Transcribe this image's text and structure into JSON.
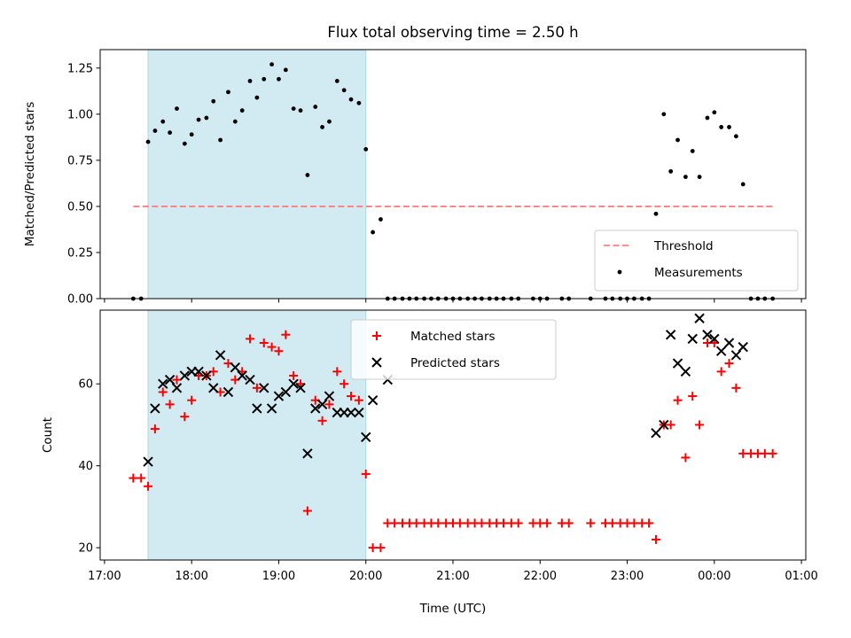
{
  "figure": {
    "title": "Flux total observing time = 2.50 h",
    "xlabel": "Time (UTC)",
    "x_ticks": [
      "17:00",
      "18:00",
      "19:00",
      "20:00",
      "21:00",
      "22:00",
      "23:00",
      "00:00",
      "01:00"
    ]
  },
  "colors": {
    "threshold": "#ff7f7f",
    "shade": "#add8e6",
    "matched": "#ff0000",
    "predicted": "#000000",
    "measurements": "#000000"
  },
  "chart_data": [
    {
      "type": "scatter",
      "panel": "top",
      "title": "Flux total observing time = 2.50 h",
      "ylabel": "Matched/Predicted stars",
      "xlim_hours": [
        16.95,
        25.05
      ],
      "ylim": [
        0.0,
        1.35
      ],
      "y_ticks": [
        "0.00",
        "0.25",
        "0.50",
        "0.75",
        "1.00",
        "1.25"
      ],
      "shaded_span_hours": [
        17.5,
        20.0
      ],
      "legend": {
        "position": "lower right",
        "entries": [
          "Threshold",
          "Measurements"
        ]
      },
      "threshold": {
        "name": "Threshold",
        "value": 0.5,
        "x_range_hours": [
          17.33,
          24.67
        ]
      },
      "series": [
        {
          "name": "Measurements",
          "x_hours": [
            17.33,
            17.42,
            17.5,
            17.58,
            17.67,
            17.75,
            17.83,
            17.92,
            18.0,
            18.08,
            18.17,
            18.25,
            18.33,
            18.42,
            18.5,
            18.58,
            18.67,
            18.75,
            18.83,
            18.92,
            19.0,
            19.08,
            19.17,
            19.25,
            19.33,
            19.42,
            19.5,
            19.58,
            19.67,
            19.75,
            19.83,
            19.92,
            20.0,
            20.08,
            20.17,
            20.25,
            20.33,
            20.42,
            20.5,
            20.58,
            20.67,
            20.75,
            20.83,
            20.92,
            21.0,
            21.08,
            21.17,
            21.25,
            21.33,
            21.42,
            21.5,
            21.58,
            21.67,
            21.75,
            21.92,
            22.0,
            22.08,
            22.25,
            22.33,
            22.58,
            22.75,
            22.83,
            22.92,
            23.0,
            23.08,
            23.17,
            23.25,
            23.33,
            23.42,
            23.5,
            23.58,
            23.67,
            23.75,
            23.83,
            23.92,
            24.0,
            24.08,
            24.17,
            24.25,
            24.33,
            24.42,
            24.5,
            24.58,
            24.67
          ],
          "y": [
            0.0,
            0.0,
            0.85,
            0.91,
            0.96,
            0.9,
            1.03,
            0.84,
            0.89,
            0.97,
            0.98,
            1.07,
            0.86,
            1.12,
            0.96,
            1.02,
            1.18,
            1.09,
            1.19,
            1.27,
            1.19,
            1.24,
            1.03,
            1.02,
            0.67,
            1.04,
            0.93,
            0.96,
            1.18,
            1.13,
            1.08,
            1.06,
            0.81,
            0.36,
            0.43,
            0.0,
            0.0,
            0.0,
            0.0,
            0.0,
            0.0,
            0.0,
            0.0,
            0.0,
            0.0,
            0.0,
            0.0,
            0.0,
            0.0,
            0.0,
            0.0,
            0.0,
            0.0,
            0.0,
            0.0,
            0.0,
            0.0,
            0.0,
            0.0,
            0.0,
            0.0,
            0.0,
            0.0,
            0.0,
            0.0,
            0.0,
            0.0,
            0.46,
            1.0,
            0.69,
            0.86,
            0.66,
            0.8,
            0.66,
            0.98,
            1.01,
            0.93,
            0.93,
            0.88,
            0.62,
            0.0,
            0.0,
            0.0,
            0.0
          ]
        }
      ]
    },
    {
      "type": "scatter",
      "panel": "bottom",
      "xlabel": "Time (UTC)",
      "ylabel": "Count",
      "xlim_hours": [
        16.95,
        25.05
      ],
      "ylim": [
        17,
        78
      ],
      "y_ticks": [
        "20",
        "40",
        "60"
      ],
      "shaded_span_hours": [
        17.5,
        20.0
      ],
      "legend": {
        "position": "upper center",
        "entries": [
          "Matched stars",
          "Predicted stars"
        ]
      },
      "series": [
        {
          "name": "Matched stars",
          "marker": "+",
          "x_hours": [
            17.33,
            17.42,
            17.5,
            17.58,
            17.67,
            17.75,
            17.83,
            17.92,
            18.0,
            18.08,
            18.17,
            18.25,
            18.33,
            18.42,
            18.5,
            18.58,
            18.67,
            18.75,
            18.83,
            18.92,
            19.0,
            19.08,
            19.17,
            19.25,
            19.33,
            19.42,
            19.5,
            19.58,
            19.67,
            19.75,
            19.83,
            19.92,
            20.0,
            20.08,
            20.17,
            20.25,
            20.33,
            20.42,
            20.5,
            20.58,
            20.67,
            20.75,
            20.83,
            20.92,
            21.0,
            21.08,
            21.17,
            21.25,
            21.33,
            21.42,
            21.5,
            21.58,
            21.67,
            21.75,
            21.92,
            22.0,
            22.08,
            22.25,
            22.33,
            22.58,
            22.75,
            22.83,
            22.92,
            23.0,
            23.08,
            23.17,
            23.25,
            23.33,
            23.42,
            23.5,
            23.58,
            23.67,
            23.75,
            23.83,
            23.92,
            24.0,
            24.08,
            24.17,
            24.25,
            24.33,
            24.42,
            24.5,
            24.58,
            24.67
          ],
          "y": [
            37,
            37,
            35,
            49,
            58,
            55,
            61,
            52,
            56,
            62,
            62,
            63,
            58,
            65,
            61,
            63,
            71,
            59,
            70,
            69,
            68,
            72,
            62,
            60,
            29,
            56,
            51,
            55,
            63,
            60,
            57,
            56,
            38,
            20,
            20,
            26,
            26,
            26,
            26,
            26,
            26,
            26,
            26,
            26,
            26,
            26,
            26,
            26,
            26,
            26,
            26,
            26,
            26,
            26,
            26,
            26,
            26,
            26,
            26,
            26,
            26,
            26,
            26,
            26,
            26,
            26,
            26,
            22,
            50,
            50,
            56,
            42,
            57,
            50,
            70,
            70,
            63,
            65,
            59,
            43,
            43,
            43,
            43,
            43
          ]
        },
        {
          "name": "Predicted stars",
          "marker": "x",
          "x_hours": [
            17.5,
            17.58,
            17.67,
            17.75,
            17.83,
            17.92,
            18.0,
            18.08,
            18.17,
            18.25,
            18.33,
            18.42,
            18.5,
            18.58,
            18.67,
            18.75,
            18.83,
            18.92,
            19.0,
            19.08,
            19.17,
            19.25,
            19.33,
            19.42,
            19.5,
            19.58,
            19.67,
            19.75,
            19.83,
            19.92,
            20.0,
            20.08,
            20.25,
            23.33,
            23.42,
            23.5,
            23.58,
            23.67,
            23.75,
            23.83,
            23.92,
            24.0,
            24.08,
            24.17,
            24.25,
            24.33
          ],
          "y": [
            41,
            54,
            60,
            61,
            59,
            62,
            63,
            63,
            62,
            59,
            67,
            58,
            64,
            62,
            61,
            54,
            59,
            54,
            57,
            58,
            60,
            59,
            43,
            54,
            55,
            57,
            53,
            53,
            53,
            53,
            47,
            56,
            61,
            48,
            50,
            72,
            65,
            63,
            71,
            76,
            72,
            71,
            68,
            70,
            67,
            69
          ]
        }
      ]
    }
  ]
}
